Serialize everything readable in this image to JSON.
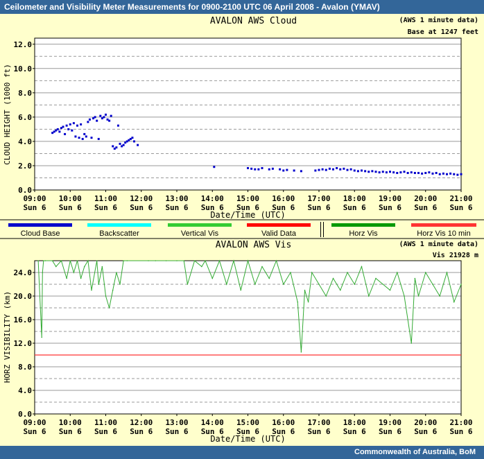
{
  "header": {
    "title": "Ceilometer and Visibility Meter Measurements for 0900-2100 UTC  06 April 2008 - Avalon (YMAV)"
  },
  "footer": {
    "credit": "Commonwealth of  Australia, BoM"
  },
  "legend": {
    "items": [
      {
        "label": "Cloud Base",
        "color": "#0000cc"
      },
      {
        "label": "Backscatter",
        "color": "#00ffff"
      },
      {
        "label": "Vertical Vis",
        "color": "#33cc33"
      },
      {
        "label": "Valid Data",
        "color": "#ff0000"
      },
      {
        "label": "Horz Vis",
        "color": "#009900"
      },
      {
        "label": "Horz Vis 10 min",
        "color": "#ff3333"
      }
    ]
  },
  "chart_data": [
    {
      "type": "scatter",
      "title": "AVALON AWS Cloud",
      "note1": "(AWS 1 minute data)",
      "note2": "Base at 1247 feet",
      "xlabel": "Date/Time (UTC)",
      "ylabel": "CLOUD HEIGHT (1000 ft)",
      "ylim": [
        0,
        12.5
      ],
      "yticks": [
        "0.0",
        "2.0",
        "4.0",
        "6.0",
        "8.0",
        "10.0",
        "12.0"
      ],
      "xlim": [
        9,
        21
      ],
      "xticks": [
        "09:00",
        "10:00",
        "11:00",
        "12:00",
        "13:00",
        "14:00",
        "15:00",
        "16:00",
        "17:00",
        "18:00",
        "19:00",
        "20:00",
        "21:00"
      ],
      "xticks_day": "Sun 6",
      "grid": true,
      "color": "#0000cc",
      "series": [
        {
          "values_desc": "cloud base",
          "x": [
            9.5,
            9.55,
            9.6,
            9.65,
            9.7,
            9.75,
            9.8,
            9.85,
            9.9,
            9.95,
            10.0,
            10.05,
            10.1,
            10.15,
            10.2,
            10.25,
            10.3,
            10.35,
            10.4,
            10.45,
            10.5,
            10.55,
            10.6,
            10.65,
            10.7,
            10.75,
            10.8,
            10.85,
            10.9,
            10.95,
            11.0,
            11.05,
            11.1,
            11.15,
            11.2,
            11.25,
            11.3,
            11.35,
            11.4,
            11.45,
            11.5,
            11.55,
            11.6,
            11.65,
            11.7,
            11.75,
            11.8,
            11.9,
            14.05,
            15.0,
            15.1,
            15.2,
            15.3,
            15.4,
            15.6,
            15.7,
            15.9,
            16.0,
            16.1,
            16.3,
            16.5,
            16.9,
            17.0,
            17.1,
            17.2,
            17.3,
            17.4,
            17.5,
            17.6,
            17.7,
            17.8,
            17.9,
            18.0,
            18.1,
            18.2,
            18.3,
            18.4,
            18.5,
            18.6,
            18.7,
            18.8,
            18.9,
            19.0,
            19.1,
            19.2,
            19.3,
            19.4,
            19.5,
            19.6,
            19.7,
            19.8,
            19.9,
            20.0,
            20.1,
            20.2,
            20.3,
            20.4,
            20.5,
            20.6,
            20.7,
            20.8,
            20.9,
            21.0
          ],
          "y": [
            4.7,
            4.8,
            4.9,
            5.0,
            4.8,
            5.1,
            5.2,
            4.6,
            5.3,
            5.0,
            5.4,
            4.9,
            5.5,
            4.4,
            5.3,
            4.3,
            5.4,
            4.2,
            4.6,
            4.4,
            5.6,
            5.8,
            4.3,
            5.9,
            6.0,
            5.7,
            4.2,
            6.1,
            5.9,
            6.0,
            6.2,
            5.8,
            5.7,
            6.1,
            3.6,
            3.4,
            3.5,
            5.3,
            3.8,
            3.6,
            3.7,
            3.9,
            4.0,
            4.1,
            4.2,
            4.3,
            4.0,
            3.7,
            1.9,
            1.8,
            1.75,
            1.7,
            1.7,
            1.8,
            1.7,
            1.75,
            1.7,
            1.6,
            1.65,
            1.6,
            1.55,
            1.6,
            1.65,
            1.7,
            1.65,
            1.75,
            1.7,
            1.8,
            1.7,
            1.75,
            1.65,
            1.7,
            1.6,
            1.55,
            1.6,
            1.55,
            1.5,
            1.55,
            1.5,
            1.45,
            1.5,
            1.45,
            1.5,
            1.45,
            1.4,
            1.45,
            1.5,
            1.4,
            1.45,
            1.4,
            1.4,
            1.35,
            1.4,
            1.45,
            1.35,
            1.4,
            1.3,
            1.35,
            1.3,
            1.35,
            1.3,
            1.25,
            1.3
          ]
        }
      ]
    },
    {
      "type": "line",
      "title": "AVALON AWS Vis",
      "note1": "(AWS 1 minute data)",
      "note2": "Vis 21928 m",
      "xlabel": "Date/Time (UTC)",
      "ylabel": "HORZ VISIBILITY (km)",
      "ylim": [
        0,
        26
      ],
      "yticks": [
        "0.0",
        "4.0",
        "8.0",
        "12.0",
        "16.0",
        "20.0",
        "24.0"
      ],
      "xlim": [
        9,
        21
      ],
      "xticks": [
        "09:00",
        "10:00",
        "11:00",
        "12:00",
        "13:00",
        "14:00",
        "15:00",
        "16:00",
        "17:00",
        "18:00",
        "19:00",
        "20:00",
        "21:00"
      ],
      "xticks_day": "Sun 6",
      "reference_line": 10,
      "grid": true,
      "color": "#33aa33",
      "series": [
        {
          "values_desc": "visibility",
          "x": [
            9.1,
            9.2,
            9.22,
            9.25,
            9.3,
            9.5,
            9.6,
            9.75,
            9.9,
            10.0,
            10.1,
            10.2,
            10.3,
            10.4,
            10.5,
            10.6,
            10.75,
            10.8,
            10.9,
            11.0,
            11.1,
            11.2,
            11.3,
            11.4,
            11.5,
            11.6,
            12.2,
            12.4,
            12.7,
            13.0,
            13.2,
            13.3,
            13.5,
            13.7,
            13.8,
            14.0,
            14.2,
            14.4,
            14.6,
            14.8,
            15.0,
            15.2,
            15.4,
            15.6,
            15.8,
            16.0,
            16.2,
            16.4,
            16.5,
            16.6,
            16.7,
            16.8,
            17.0,
            17.2,
            17.4,
            17.6,
            17.8,
            18.0,
            18.2,
            18.4,
            18.6,
            18.8,
            19.0,
            19.2,
            19.4,
            19.6,
            19.7,
            19.8,
            20.0,
            20.2,
            20.4,
            20.6,
            20.8,
            21.0
          ],
          "y": [
            26,
            13,
            24,
            26,
            26,
            26,
            25,
            26,
            23,
            26,
            24,
            26,
            23,
            25,
            26,
            21,
            26,
            22,
            25,
            20,
            18,
            21,
            24,
            22,
            26,
            26,
            26,
            26,
            26,
            26,
            26,
            22,
            26,
            25,
            26,
            23,
            26,
            22,
            26,
            21,
            26,
            22,
            25,
            23,
            26,
            22,
            24,
            19,
            10.5,
            21,
            19,
            24,
            22,
            20,
            23,
            21,
            24,
            22,
            25,
            20,
            23,
            22,
            21,
            24,
            20,
            12,
            23,
            20,
            24,
            22,
            20,
            24,
            19,
            22
          ]
        }
      ]
    }
  ]
}
